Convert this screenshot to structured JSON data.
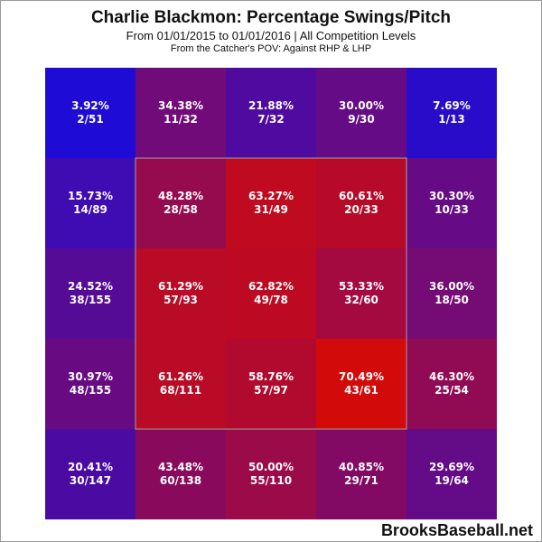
{
  "header": {
    "title": "Charlie Blackmon: Percentage Swings/Pitch",
    "subtitle": "From 01/01/2015 to 01/01/2016 | All Competition Levels",
    "subtitle2": "From the Catcher's POV:  Against RHP & LHP"
  },
  "footer": {
    "source": "BrooksBaseball.net"
  },
  "colors": {
    "low": "#1f0bd6",
    "high": "#d20a0a",
    "strike_zone_border": "#a0a0a0"
  },
  "chart_data": {
    "type": "heatmap",
    "title": "Charlie Blackmon: Percentage Swings/Pitch",
    "rows": 5,
    "cols": 5,
    "strike_zone": {
      "rows": [
        1,
        3
      ],
      "cols": [
        1,
        3
      ]
    },
    "cells": [
      [
        {
          "pct": "3.92%",
          "count": "2/51",
          "value": 3.92
        },
        {
          "pct": "34.38%",
          "count": "11/32",
          "value": 34.38
        },
        {
          "pct": "21.88%",
          "count": "7/32",
          "value": 21.88
        },
        {
          "pct": "30.00%",
          "count": "9/30",
          "value": 30.0
        },
        {
          "pct": "7.69%",
          "count": "1/13",
          "value": 7.69
        }
      ],
      [
        {
          "pct": "15.73%",
          "count": "14/89",
          "value": 15.73
        },
        {
          "pct": "48.28%",
          "count": "28/58",
          "value": 48.28
        },
        {
          "pct": "63.27%",
          "count": "31/49",
          "value": 63.27
        },
        {
          "pct": "60.61%",
          "count": "20/33",
          "value": 60.61
        },
        {
          "pct": "30.30%",
          "count": "10/33",
          "value": 30.3
        }
      ],
      [
        {
          "pct": "24.52%",
          "count": "38/155",
          "value": 24.52
        },
        {
          "pct": "61.29%",
          "count": "57/93",
          "value": 61.29
        },
        {
          "pct": "62.82%",
          "count": "49/78",
          "value": 62.82
        },
        {
          "pct": "53.33%",
          "count": "32/60",
          "value": 53.33
        },
        {
          "pct": "36.00%",
          "count": "18/50",
          "value": 36.0
        }
      ],
      [
        {
          "pct": "30.97%",
          "count": "48/155",
          "value": 30.97
        },
        {
          "pct": "61.26%",
          "count": "68/111",
          "value": 61.26
        },
        {
          "pct": "58.76%",
          "count": "57/97",
          "value": 58.76
        },
        {
          "pct": "70.49%",
          "count": "43/61",
          "value": 70.49
        },
        {
          "pct": "46.30%",
          "count": "25/54",
          "value": 46.3
        }
      ],
      [
        {
          "pct": "20.41%",
          "count": "30/147",
          "value": 20.41
        },
        {
          "pct": "43.48%",
          "count": "60/138",
          "value": 43.48
        },
        {
          "pct": "50.00%",
          "count": "55/110",
          "value": 50.0
        },
        {
          "pct": "40.85%",
          "count": "29/71",
          "value": 40.85
        },
        {
          "pct": "29.69%",
          "count": "19/64",
          "value": 29.69
        }
      ]
    ]
  }
}
